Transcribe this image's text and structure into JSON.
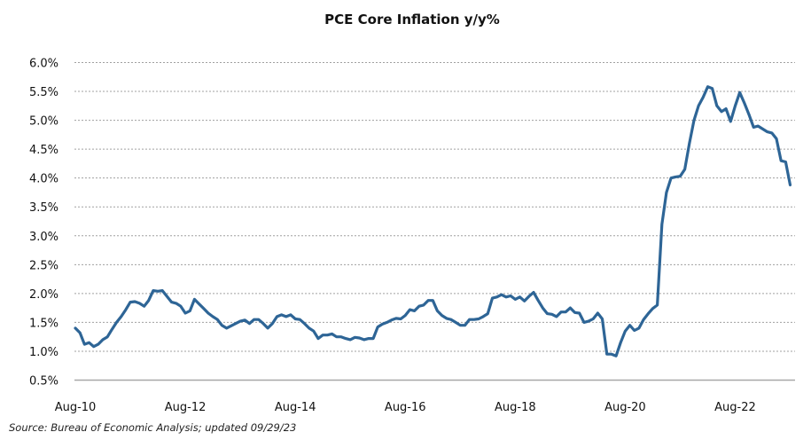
{
  "chart_data": {
    "type": "line",
    "title": "PCE Core Inflation y/y%",
    "xlabel": "",
    "ylabel": "",
    "source": "Source: Bureau of Economic Analysis; updated 09/29/23",
    "frequency": "monthly",
    "start": "Aug-10",
    "end": "Aug-23",
    "x_tick_labels": [
      "Aug-10",
      "Aug-12",
      "Aug-14",
      "Aug-16",
      "Aug-18",
      "Aug-20",
      "Aug-22"
    ],
    "y_tick_labels": [
      "0.5%",
      "1.0%",
      "1.5%",
      "2.0%",
      "2.5%",
      "3.0%",
      "3.5%",
      "4.0%",
      "4.5%",
      "5.0%",
      "5.5%",
      "6.0%"
    ],
    "ylim": [
      0.5,
      6.0
    ],
    "grid": true,
    "legend": "none",
    "line_color": "#2e6596",
    "series": [
      {
        "name": "PCE Core Inflation y/y%",
        "values": [
          1.4,
          1.32,
          1.12,
          1.15,
          1.08,
          1.12,
          1.2,
          1.25,
          1.38,
          1.5,
          1.6,
          1.72,
          1.85,
          1.86,
          1.83,
          1.78,
          1.88,
          2.05,
          2.04,
          2.05,
          1.95,
          1.85,
          1.83,
          1.78,
          1.66,
          1.7,
          1.9,
          1.82,
          1.74,
          1.66,
          1.6,
          1.55,
          1.45,
          1.4,
          1.44,
          1.48,
          1.52,
          1.54,
          1.48,
          1.55,
          1.55,
          1.48,
          1.4,
          1.48,
          1.6,
          1.63,
          1.6,
          1.63,
          1.56,
          1.55,
          1.48,
          1.4,
          1.35,
          1.22,
          1.28,
          1.28,
          1.3,
          1.25,
          1.25,
          1.22,
          1.2,
          1.24,
          1.23,
          1.2,
          1.22,
          1.22,
          1.42,
          1.47,
          1.5,
          1.54,
          1.57,
          1.56,
          1.62,
          1.72,
          1.7,
          1.78,
          1.8,
          1.88,
          1.88,
          1.7,
          1.62,
          1.57,
          1.55,
          1.5,
          1.45,
          1.45,
          1.55,
          1.55,
          1.56,
          1.6,
          1.65,
          1.92,
          1.94,
          1.98,
          1.94,
          1.96,
          1.9,
          1.94,
          1.87,
          1.95,
          2.02,
          1.88,
          1.75,
          1.65,
          1.64,
          1.6,
          1.68,
          1.68,
          1.75,
          1.67,
          1.66,
          1.5,
          1.52,
          1.56,
          1.66,
          1.56,
          0.95,
          0.95,
          0.92,
          1.15,
          1.35,
          1.45,
          1.36,
          1.4,
          1.55,
          1.65,
          1.74,
          1.8,
          3.2,
          3.75,
          4.0,
          4.02,
          4.03,
          4.15,
          4.6,
          5.0,
          5.25,
          5.4,
          5.58,
          5.55,
          5.25,
          5.15,
          5.2,
          4.98,
          5.25,
          5.48,
          5.3,
          5.1,
          4.88,
          4.9,
          4.85,
          4.8,
          4.78,
          4.68,
          4.3,
          4.28,
          3.88
        ]
      }
    ]
  }
}
